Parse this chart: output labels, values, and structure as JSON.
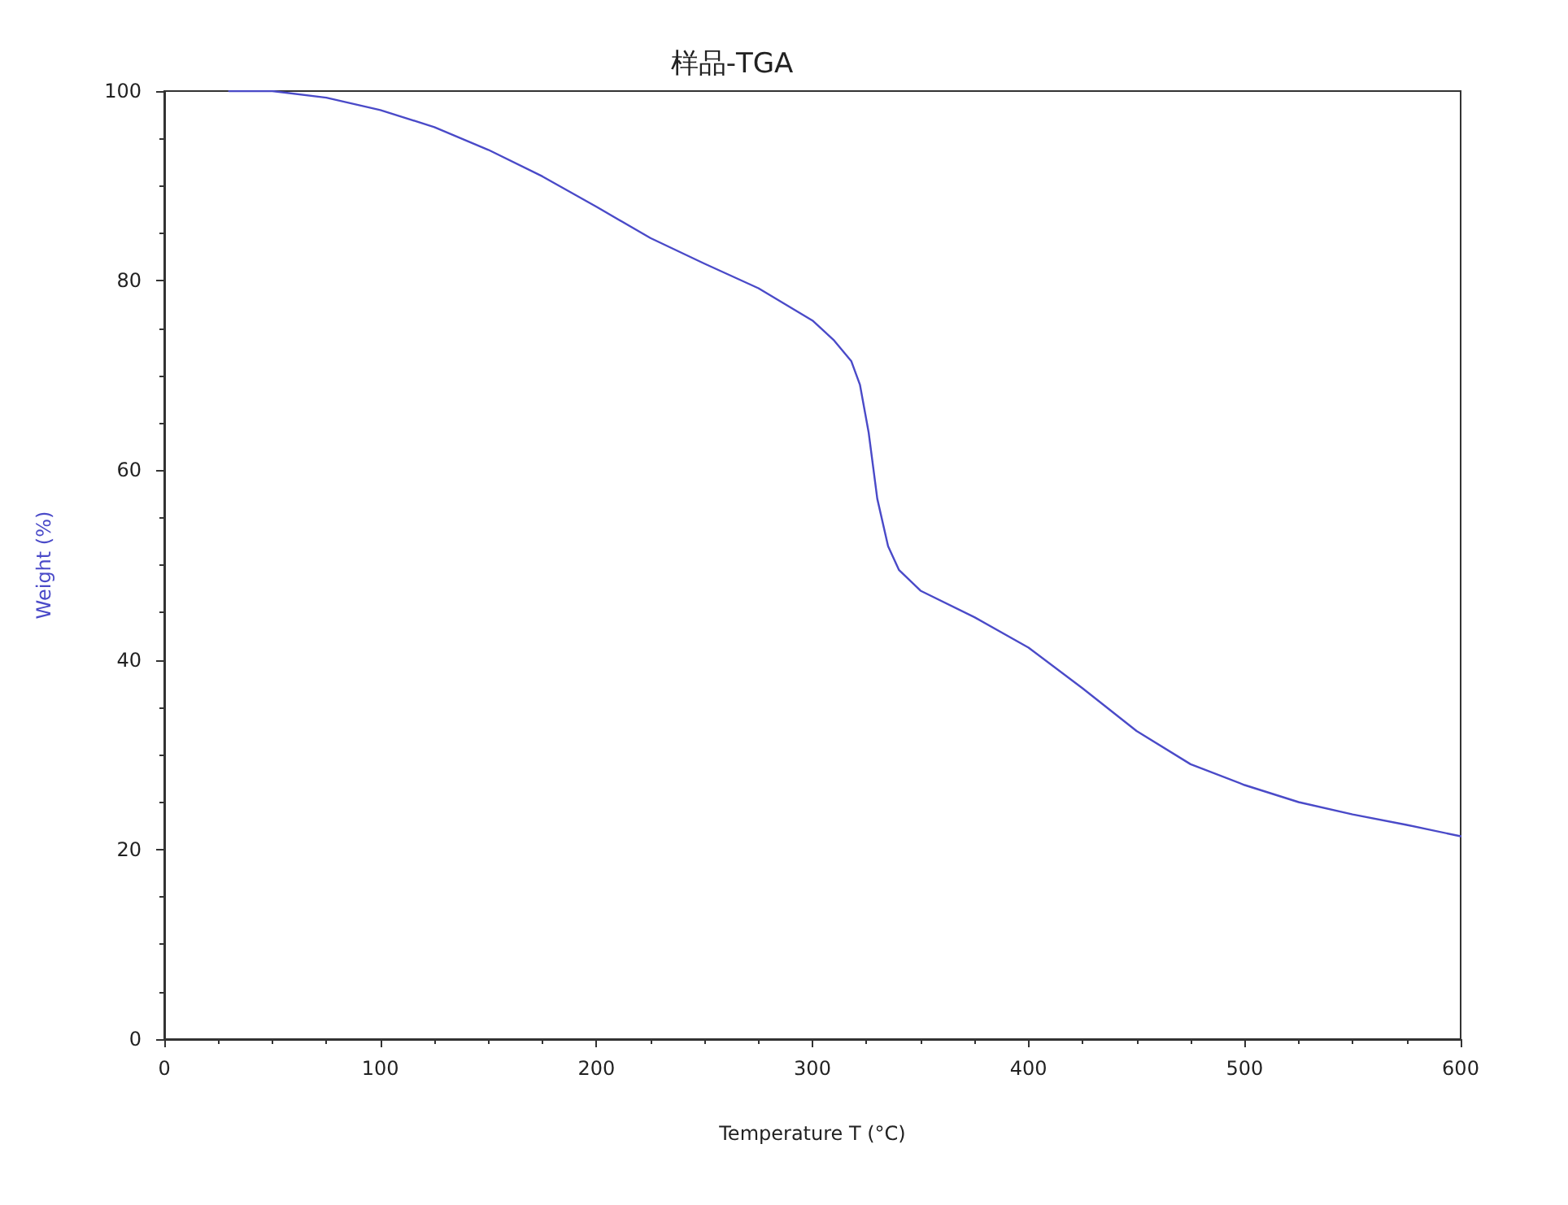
{
  "chart_data": {
    "type": "line",
    "title": "样品-TGA",
    "xlabel": "Temperature T (°C)",
    "ylabel": "Weight (%)",
    "x": [
      30,
      50,
      75,
      100,
      125,
      150,
      175,
      200,
      225,
      250,
      275,
      300,
      310,
      318,
      322,
      326,
      330,
      335,
      340,
      350,
      375,
      400,
      425,
      450,
      475,
      500,
      525,
      550,
      575,
      600
    ],
    "series": [
      {
        "color": "#4a4ac8",
        "values": [
          100,
          100,
          99.3,
          98,
          96.2,
          93.8,
          91,
          87.8,
          84.5,
          81.8,
          79.2,
          75.8,
          73.7,
          71.5,
          69,
          64,
          57,
          52,
          49.5,
          47.3,
          44.5,
          41.3,
          37,
          32.5,
          29,
          26.8,
          25,
          23.7,
          22.6,
          21.4
        ]
      }
    ],
    "xlim": [
      0,
      600
    ],
    "xticks": [
      0,
      100,
      200,
      300,
      400,
      500,
      600
    ],
    "ylim": [
      0,
      100
    ],
    "yticks": [
      0,
      20,
      40,
      60,
      80,
      100
    ],
    "marker": "none",
    "line_style": "solid"
  }
}
